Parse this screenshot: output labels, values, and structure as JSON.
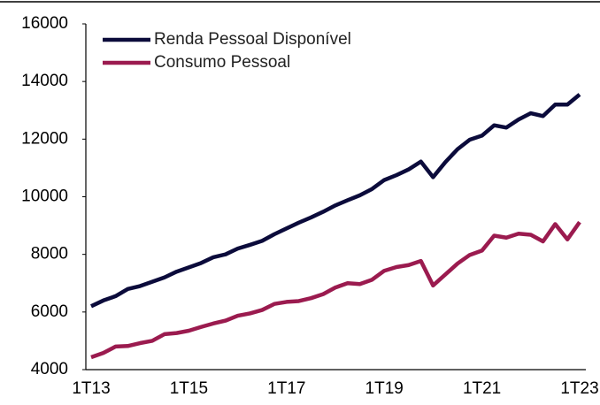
{
  "chart_data": {
    "type": "line",
    "categories": [
      "1T13",
      null,
      null,
      null,
      null,
      null,
      null,
      null,
      "1T15",
      null,
      null,
      null,
      null,
      null,
      null,
      null,
      "1T17",
      null,
      null,
      null,
      null,
      null,
      null,
      null,
      "1T19",
      null,
      null,
      null,
      null,
      null,
      null,
      null,
      "1T21",
      null,
      null,
      null,
      null,
      null,
      null,
      null,
      "1T23"
    ],
    "series": [
      {
        "name": "Renda Pessoal Disponível",
        "color": "#0b0b3b",
        "values": [
          6200,
          6400,
          6550,
          6800,
          6900,
          7050,
          7200,
          7400,
          7550,
          7700,
          7900,
          8000,
          8200,
          8330,
          8470,
          8700,
          8900,
          9100,
          9280,
          9480,
          9700,
          9880,
          10050,
          10270,
          10580,
          10750,
          10950,
          11220,
          10680,
          11200,
          11650,
          11980,
          12120,
          12480,
          12400,
          12680,
          12900,
          12800,
          13200,
          13200,
          13550
        ]
      },
      {
        "name": "Consumo Pessoal",
        "color": "#9b1b4f",
        "values": [
          4430,
          4580,
          4800,
          4820,
          4920,
          5000,
          5230,
          5270,
          5350,
          5480,
          5600,
          5700,
          5870,
          5950,
          6070,
          6280,
          6350,
          6380,
          6480,
          6620,
          6850,
          7000,
          6970,
          7120,
          7430,
          7560,
          7630,
          7770,
          6920,
          7300,
          7680,
          7980,
          8130,
          8650,
          8580,
          8720,
          8680,
          8450,
          9050,
          8520,
          9120
        ]
      }
    ],
    "ylim": [
      4000,
      16000
    ],
    "yticks": [
      4000,
      6000,
      8000,
      10000,
      12000,
      14000,
      16000
    ],
    "legend": "upper left",
    "grid": false
  }
}
